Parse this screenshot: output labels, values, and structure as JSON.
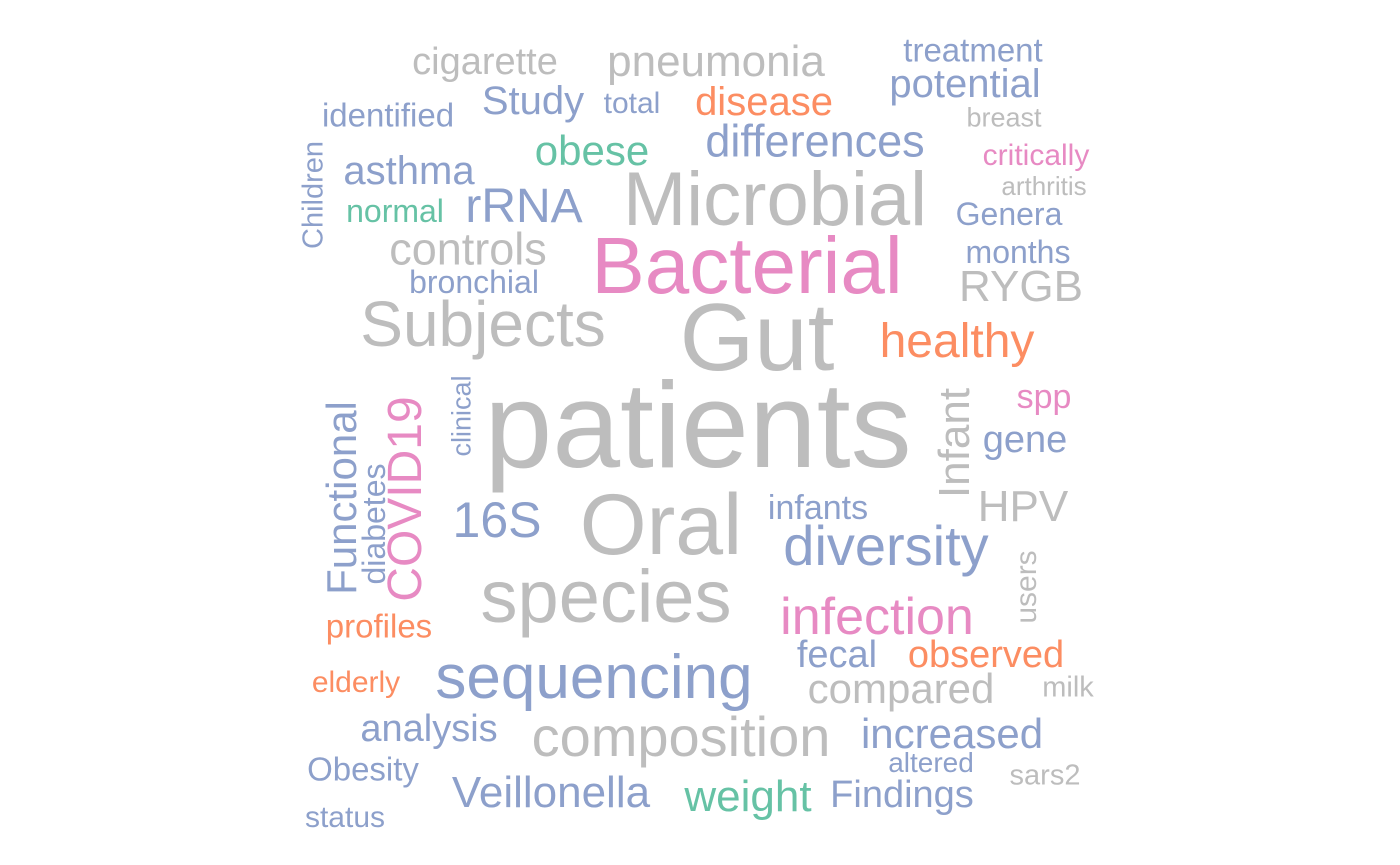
{
  "palette": {
    "gray": "#bdbdbd",
    "blue": "#8da0cb",
    "pink": "#e78ac3",
    "orange": "#fc8d62",
    "green": "#66c2a5"
  },
  "words": {
    "patients": "patients",
    "gut": "Gut",
    "bacterial": "Bacterial",
    "microbial": "Microbial",
    "oral": "Oral",
    "species": "species",
    "subjects": "Subjects",
    "sequencing": "sequencing",
    "composition": "composition",
    "diversity": "diversity",
    "infection": "infection",
    "healthy": "healthy",
    "controls": "controls",
    "differences": "differences",
    "pneumonia": "pneumonia",
    "cigarette": "cigarette",
    "disease": "disease",
    "potential": "potential",
    "treatment": "treatment",
    "study": "Study",
    "total": "total",
    "identified": "identified",
    "breast": "breast",
    "obese": "obese",
    "asthma": "asthma",
    "critically": "critically",
    "arthritis": "arthritis",
    "children": "Children",
    "normal": "normal",
    "rrna": "rRNA",
    "genera": "Genera",
    "months": "months",
    "bronchial": "bronchial",
    "rygb": "RYGB",
    "spp": "spp",
    "infant": "Infant",
    "gene": "gene",
    "covid19": "COVID19",
    "clinical": "clinical",
    "functional": "Functional",
    "diabetes": "diabetes",
    "s16": "16S",
    "infants": "infants",
    "hpv": "HPV",
    "users": "users",
    "profiles": "profiles",
    "fecal": "fecal",
    "observed": "observed",
    "elderly": "elderly",
    "compared": "compared",
    "milk": "milk",
    "analysis": "analysis",
    "increased": "increased",
    "obesity": "Obesity",
    "altered": "altered",
    "sars2": "sars2",
    "veillonella": "Veillonella",
    "weight": "weight",
    "findings": "Findings",
    "status": "status"
  }
}
